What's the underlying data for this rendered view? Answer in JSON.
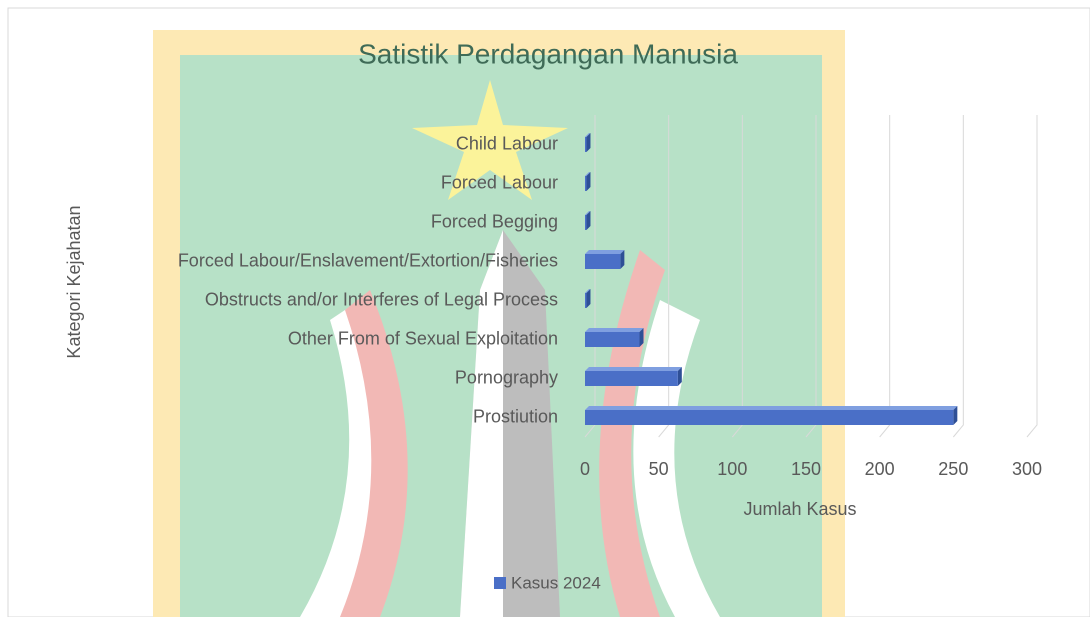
{
  "chart_data": {
    "type": "hbar",
    "title": "Satistik Perdagangan Manusia",
    "x_label": "Jumlah Kasus",
    "y_label": "Kategori Kejahatan",
    "categories": [
      "Child Labour",
      "Forced Labour ",
      "Forced Begging",
      "Forced Labour/Enslavement/Extortion/Fisheries",
      "Obstructs and/or Interferes of Legal Process",
      "Other From of Sexual Exploitation",
      "Pornography",
      "Prostiution"
    ],
    "series": [
      {
        "name": "Kasus 2024",
        "color": "#4a6fc7",
        "values": [
          1,
          1,
          1,
          24,
          1,
          37,
          63,
          250
        ]
      }
    ],
    "xlim": [
      0,
      300
    ],
    "xticks": [
      0,
      50,
      100,
      150,
      200,
      250,
      300
    ],
    "grid": true,
    "legend": "bottom"
  }
}
